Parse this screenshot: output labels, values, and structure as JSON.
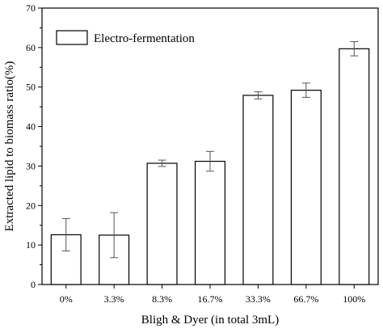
{
  "chart_data": {
    "type": "bar",
    "title": "",
    "xlabel": "Bligh & Dyer (in total 3mL)",
    "ylabel": "Extracted lipid to biomass ratio(%)",
    "ylim": [
      0,
      70
    ],
    "yticks": [
      "0",
      "10",
      "20",
      "30",
      "40",
      "50",
      "60",
      "70"
    ],
    "categories": [
      "0%",
      "3.3%",
      "8.3%",
      "16.7%",
      "33.3%",
      "66.7%",
      "100%"
    ],
    "series": [
      {
        "name": "Electro-fermentation",
        "values": [
          12.6,
          12.5,
          30.7,
          31.2,
          47.9,
          49.2,
          59.7
        ],
        "errors": [
          4.1,
          5.7,
          0.8,
          2.5,
          0.9,
          1.8,
          1.8
        ]
      }
    ],
    "legend_position": "top-left",
    "grid": false,
    "bar_fill": "#ffffff",
    "bar_stroke": "#000000"
  }
}
